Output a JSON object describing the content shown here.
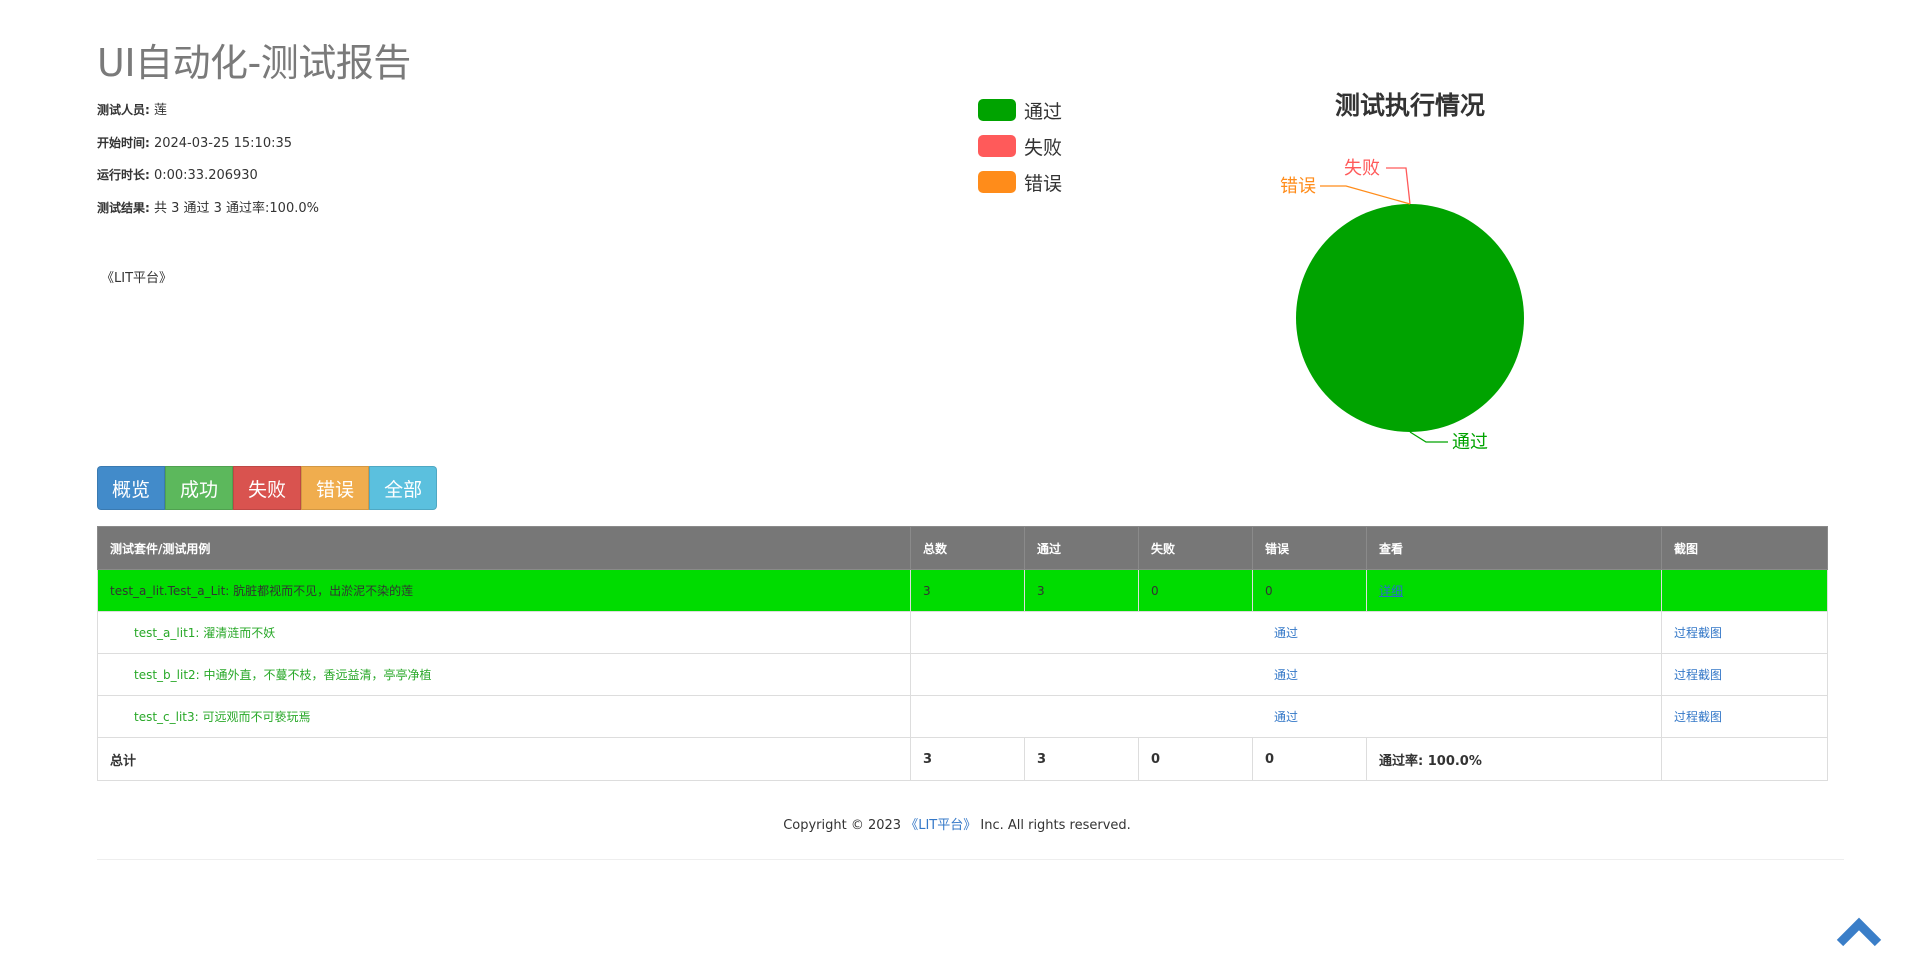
{
  "page": {
    "title": "UI自动化-测试报告"
  },
  "info": {
    "tester_label": "测试人员:",
    "tester_value": "莲",
    "start_label": "开始时间:",
    "start_value": "2024-03-25 15:10:35",
    "duration_label": "运行时长:",
    "duration_value": "0:00:33.206930",
    "result_label": "测试结果:",
    "result_value": "共 3 通过 3 通过率:100.0%",
    "platform": "《LIT平台》"
  },
  "legend": [
    {
      "label": "通过",
      "color": "#00a300"
    },
    {
      "label": "失败",
      "color": "#ff5a5a"
    },
    {
      "label": "错误",
      "color": "#ff8c1a"
    }
  ],
  "chart_data": {
    "type": "pie",
    "title": "测试执行情况",
    "slices": [
      {
        "label": "通过",
        "value": 3,
        "color": "#00a300"
      },
      {
        "label": "失败",
        "value": 0,
        "color": "#ff5a5a"
      },
      {
        "label": "错误",
        "value": 0,
        "color": "#ff8c1a"
      }
    ],
    "legend_position": "top-left"
  },
  "filters": [
    {
      "label": "概览",
      "color": "#428bca"
    },
    {
      "label": "成功",
      "color": "#5cb85c"
    },
    {
      "label": "失败",
      "color": "#d9534f"
    },
    {
      "label": "错误",
      "color": "#f0ad4e"
    },
    {
      "label": "全部",
      "color": "#5bc0de"
    }
  ],
  "table": {
    "headers": [
      "测试套件/测试用例",
      "总数",
      "通过",
      "失败",
      "错误",
      "查看",
      "截图"
    ],
    "suite": {
      "name": "test_a_lit.Test_a_Lit: 肮脏都视而不见，出淤泥不染的莲",
      "total": "3",
      "pass": "3",
      "fail": "0",
      "error": "0",
      "view": "详细"
    },
    "cases": [
      {
        "name": "test_a_lit1: 濯清涟而不妖",
        "status": "通过",
        "shot": "过程截图"
      },
      {
        "name": "test_b_lit2: 中通外直，不蔓不枝，香远益清，亭亭净植",
        "status": "通过",
        "shot": "过程截图"
      },
      {
        "name": "test_c_lit3: 可远观而不可亵玩焉",
        "status": "通过",
        "shot": "过程截图"
      }
    ],
    "total": {
      "label": "总计",
      "total": "3",
      "pass": "3",
      "fail": "0",
      "error": "0",
      "rate": "通过率: 100.0%"
    }
  },
  "footer": {
    "prefix": "Copyright © 2023 ",
    "brand": "《LIT平台》",
    "suffix": " Inc. All rights reserved."
  }
}
